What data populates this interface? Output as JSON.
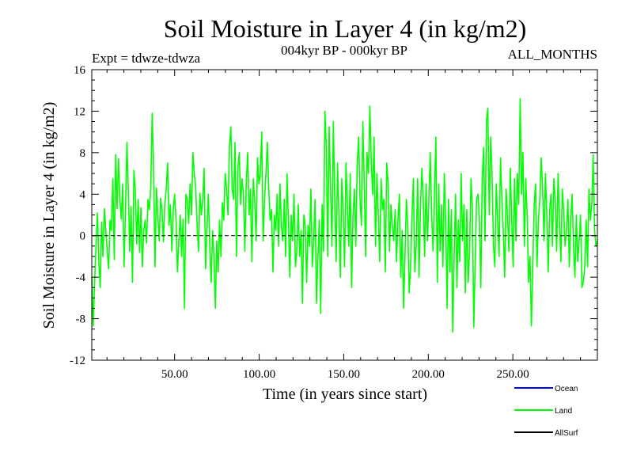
{
  "chart_data": {
    "type": "line",
    "title": "Soil Moisture in Layer 4 (in kg/m2)",
    "subtitle": "004kyr BP - 000kyr BP",
    "expt_label": "Expt = tdwze-tdwza",
    "period_label": "ALL_MONTHS",
    "xlabel": "Time (in years since start)",
    "ylabel": "Soil Moisture in Layer 4 (in kg/m2)",
    "xlim": [
      1,
      300
    ],
    "ylim": [
      -12,
      16
    ],
    "x_ticks": [
      50,
      100,
      150,
      200,
      250
    ],
    "x_tick_labels": [
      "50.00",
      "100.00",
      "150.00",
      "200.00",
      "250.00"
    ],
    "y_ticks": [
      -12,
      -8,
      -4,
      0,
      4,
      8,
      12,
      16
    ],
    "y_tick_labels": [
      "-12",
      "-8",
      "-4",
      "0",
      "4",
      "8",
      "12",
      "16"
    ],
    "zero_line": 0,
    "series": [
      {
        "name": "Ocean",
        "color": "#0000ff",
        "values": []
      },
      {
        "name": "Land",
        "color": "#00ff00",
        "values": [
          -4.0,
          -8.7,
          -4.5,
          -1.0,
          2.2,
          -2.5,
          -5.0,
          1.3,
          -2.0,
          2.6,
          0.5,
          -1.5,
          -3.2,
          1.5,
          0.5,
          5.5,
          -2.3,
          7.8,
          2.6,
          7.4,
          3.5,
          1.6,
          5.0,
          -3.0,
          2.5,
          9.0,
          4.5,
          -1.5,
          2.8,
          -4.5,
          6.3,
          4.4,
          -0.8,
          3.5,
          -1.6,
          2.7,
          -3.0,
          0.5,
          1.5,
          -0.7,
          3.5,
          2.5,
          4.6,
          11.8,
          6.5,
          -3.0,
          4.6,
          2.1,
          -0.5,
          3.6,
          2.5,
          -0.6,
          3.0,
          4.5,
          7.0,
          1.0,
          3.0,
          -1.5,
          2.5,
          4.0,
          1.5,
          -3.5,
          -0.5,
          2.0,
          -2.0,
          1.6,
          -7.0,
          4.0,
          3.5,
          1.2,
          5.0,
          2.0,
          8.0,
          6.0,
          4.5,
          1.0,
          -1.5,
          4.1,
          2.0,
          3.5,
          6.5,
          -3.2,
          0.5,
          4.0,
          -1.0,
          -4.5,
          0.5,
          -2.0,
          -7.0,
          -0.5,
          -3.5,
          1.5,
          -2.0,
          3.2,
          1.5,
          6.0,
          4.5,
          2.0,
          8.5,
          10.5,
          4.5,
          3.5,
          9.0,
          -2.0,
          6.5,
          8.0,
          3.0,
          5.5,
          4.0,
          -1.5,
          5.0,
          8.0,
          2.0,
          4.5,
          -2.5,
          5.5,
          3.5,
          -0.5,
          7.5,
          5.0,
          6.0,
          10.0,
          -0.5,
          3.5,
          6.0,
          9.0,
          4.5,
          1.5,
          2.5,
          -3.5,
          2.0,
          0.5,
          4.0,
          -1.0,
          5.0,
          1.0,
          -0.5,
          3.5,
          -2.0,
          6.0,
          1.5,
          -4.0,
          2.0,
          -0.5,
          4.0,
          -3.0,
          -1.5,
          3.0,
          -2.0,
          0.5,
          -6.5,
          2.0,
          1.0,
          -4.5,
          1.0,
          -1.0,
          4.5,
          -3.0,
          -0.5,
          3.5,
          -6.5,
          -2.0,
          1.5,
          -7.5,
          3.0,
          -1.5,
          12.0,
          8.5,
          -2.0,
          10.5,
          5.0,
          -1.0,
          11.0,
          3.5,
          -2.5,
          7.0,
          1.5,
          -4.0,
          5.5,
          2.5,
          -3.0,
          7.0,
          3.0,
          -1.0,
          6.0,
          -5.0,
          2.0,
          4.5,
          -1.0,
          7.0,
          9.5,
          3.5,
          1.0,
          11.0,
          5.0,
          -2.0,
          8.0,
          6.0,
          12.5,
          7.0,
          4.0,
          9.5,
          -1.0,
          6.0,
          2.0,
          -2.5,
          5.5,
          2.5,
          3.5,
          -3.5,
          7.0,
          5.0,
          -1.5,
          3.0,
          1.0,
          -0.5,
          2.5,
          -2.5,
          1.5,
          4.0,
          -4.0,
          0.5,
          -7.0,
          -2.0,
          3.5,
          1.0,
          -5.5,
          -3.0,
          2.0,
          5.5,
          -3.5,
          -1.0,
          5.5,
          -4.0,
          2.5,
          6.5,
          3.5,
          -2.0,
          5.0,
          -0.5,
          3.5,
          8.0,
          2.0,
          -1.5,
          4.0,
          9.5,
          -4.5,
          5.0,
          -1.5,
          3.0,
          -3.0,
          6.0,
          1.5,
          -7.0,
          3.5,
          -3.5,
          2.5,
          -9.3,
          -2.0,
          4.0,
          -5.0,
          1.5,
          -2.5,
          6.0,
          -0.5,
          3.0,
          -5.5,
          2.5,
          -4.5,
          -1.5,
          5.5,
          2.5,
          -8.8,
          -2.5,
          3.5,
          4.0,
          1.5,
          -5.0,
          5.5,
          8.5,
          -0.5,
          11.0,
          12.3,
          2.0,
          9.5,
          6.0,
          -1.0,
          -3.0,
          5.0,
          1.5,
          -2.0,
          7.5,
          3.5,
          0.5,
          -4.0,
          4.5,
          2.0,
          -1.5,
          6.5,
          1.5,
          -3.0,
          5.5,
          -0.5,
          6.0,
          3.0,
          13.2,
          4.0,
          8.0,
          -1.0,
          5.5,
          2.0,
          -4.5,
          -2.0,
          -8.7,
          -3.0,
          3.0,
          5.0,
          -3.0,
          1.5,
          3.5,
          7.5,
          4.5,
          -0.5,
          6.0,
          2.0,
          -3.5,
          2.5,
          4.0,
          -1.0,
          5.5,
          3.5,
          -1.5,
          6.0,
          1.5,
          -2.5,
          4.5,
          2.5,
          -1.0,
          0.5,
          3.5,
          -3.0,
          1.5,
          4.0,
          -1.0,
          -4.0,
          2.0,
          -2.5,
          -0.5,
          2.0,
          -5.0,
          -4.5,
          -3.0,
          1.5,
          -3.0,
          4.5,
          1.5,
          3.0,
          7.8,
          0.5,
          -1.0,
          -0.5
        ]
      },
      {
        "name": "AllSurf",
        "color": "#000000",
        "values": []
      }
    ],
    "legend": [
      "Ocean",
      "Land",
      "AllSurf"
    ],
    "legend_position": "bottom-right"
  }
}
